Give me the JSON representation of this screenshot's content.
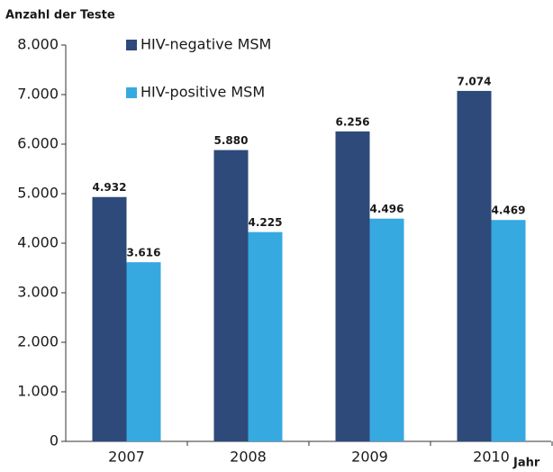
{
  "chart_data": {
    "type": "bar",
    "y_label": "Anzahl der Teste",
    "x_label": "Jahr",
    "categories": [
      "2007",
      "2008",
      "2009",
      "2010"
    ],
    "series": [
      {
        "name": "HIV-negative MSM",
        "color": "#2e4a7a",
        "values": [
          4932,
          5880,
          6256,
          7074
        ],
        "value_labels": [
          "4.932",
          "5.880",
          "6.256",
          "7.074"
        ]
      },
      {
        "name": "HIV-positive MSM",
        "color": "#36a9e1",
        "values": [
          3616,
          4225,
          4496,
          4469
        ],
        "value_labels": [
          "3.616",
          "4.225",
          "4.496",
          "4.469"
        ]
      }
    ],
    "ylim": [
      0,
      8000
    ],
    "yticks": [
      0,
      {
        "value": 1000,
        "label": "1.000"
      },
      {
        "value": 2000,
        "label": "2.000"
      },
      {
        "value": 3000,
        "label": "3.000"
      },
      {
        "value": 4000,
        "label": "4.000"
      },
      {
        "value": 5000,
        "label": "5.000"
      },
      {
        "value": 6000,
        "label": "6.000"
      },
      {
        "value": 7000,
        "label": "7.000"
      },
      {
        "value": 8000,
        "label": "8.000"
      }
    ],
    "grid": false
  }
}
